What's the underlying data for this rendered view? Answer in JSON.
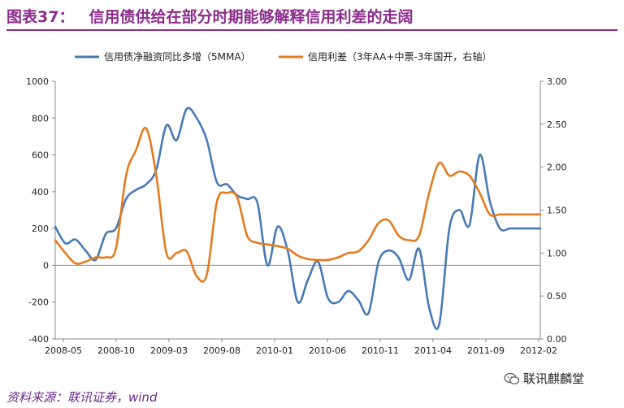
{
  "header": {
    "figure_label": "图表37：",
    "figure_title": "信用债供给在部分时期能够解释信用利差的走阔"
  },
  "footer": {
    "source": "资料来源：联讯证券，wind",
    "watermark": "联讯麒麟堂"
  },
  "colors": {
    "series1": "#4a7ab5",
    "series2": "#e47b1e",
    "title": "#8b2b8b"
  },
  "chart_data": {
    "type": "line",
    "title": "",
    "legend_position": "top",
    "x_tick_labels": [
      "2008-05",
      "2008-10",
      "2009-03",
      "2009-08",
      "2010-01",
      "2010-06",
      "2010-11",
      "2011-04",
      "2011-09",
      "2012-02"
    ],
    "x_range": [
      0,
      48
    ],
    "y_left": {
      "ticks": [
        "1000",
        "800",
        "600",
        "400",
        "200",
        "0",
        "-200",
        "-400"
      ],
      "range": [
        -400,
        1000
      ]
    },
    "y_right": {
      "ticks": [
        "3.00",
        "2.50",
        "2.00",
        "1.50",
        "1.00",
        "0.50",
        "0.00"
      ],
      "range": [
        0,
        3
      ]
    },
    "series": [
      {
        "name": "信用债净融资同比多增（5MMA）",
        "axis": "left",
        "x": [
          0,
          1,
          2,
          3,
          4,
          5,
          6,
          7,
          8,
          9,
          10,
          11,
          12,
          13,
          14,
          15,
          16,
          17,
          18,
          19,
          20,
          21,
          22,
          23,
          24,
          25,
          26,
          27,
          28,
          29,
          30,
          31,
          32,
          33,
          34,
          35,
          36,
          37,
          38,
          39,
          40,
          41,
          42,
          43,
          44,
          45,
          46,
          47,
          48
        ],
        "values": [
          210,
          120,
          140,
          80,
          30,
          170,
          200,
          360,
          410,
          440,
          520,
          760,
          680,
          850,
          800,
          680,
          450,
          440,
          380,
          360,
          340,
          0,
          210,
          80,
          -200,
          -80,
          20,
          -180,
          -200,
          -140,
          -190,
          -260,
          20,
          80,
          40,
          -80,
          90,
          -230,
          -320,
          200,
          300,
          220,
          600,
          350,
          200,
          200,
          200,
          200,
          200
        ]
      },
      {
        "name": "信用利差（3年AA+中票-3年国开，右轴）",
        "axis": "right",
        "x": [
          0,
          1,
          2,
          3,
          4,
          5,
          6,
          7,
          8,
          9,
          10,
          11,
          12,
          13,
          14,
          15,
          16,
          17,
          18,
          19,
          20,
          21,
          22,
          23,
          24,
          25,
          26,
          27,
          28,
          29,
          30,
          31,
          32,
          33,
          34,
          35,
          36,
          37,
          38,
          39,
          40,
          41,
          42,
          43,
          44,
          45,
          46,
          47,
          48
        ],
        "values": [
          1.15,
          1.0,
          0.88,
          0.9,
          0.95,
          0.95,
          1.05,
          1.9,
          2.2,
          2.45,
          1.9,
          1.0,
          1.0,
          1.02,
          0.73,
          0.75,
          1.6,
          1.7,
          1.65,
          1.2,
          1.12,
          1.1,
          1.08,
          1.05,
          0.97,
          0.93,
          0.92,
          0.92,
          0.95,
          1.0,
          1.02,
          1.15,
          1.35,
          1.38,
          1.2,
          1.15,
          1.2,
          1.7,
          2.05,
          1.9,
          1.95,
          1.9,
          1.7,
          1.45,
          1.45,
          1.45,
          1.45,
          1.45,
          1.45
        ]
      }
    ]
  }
}
